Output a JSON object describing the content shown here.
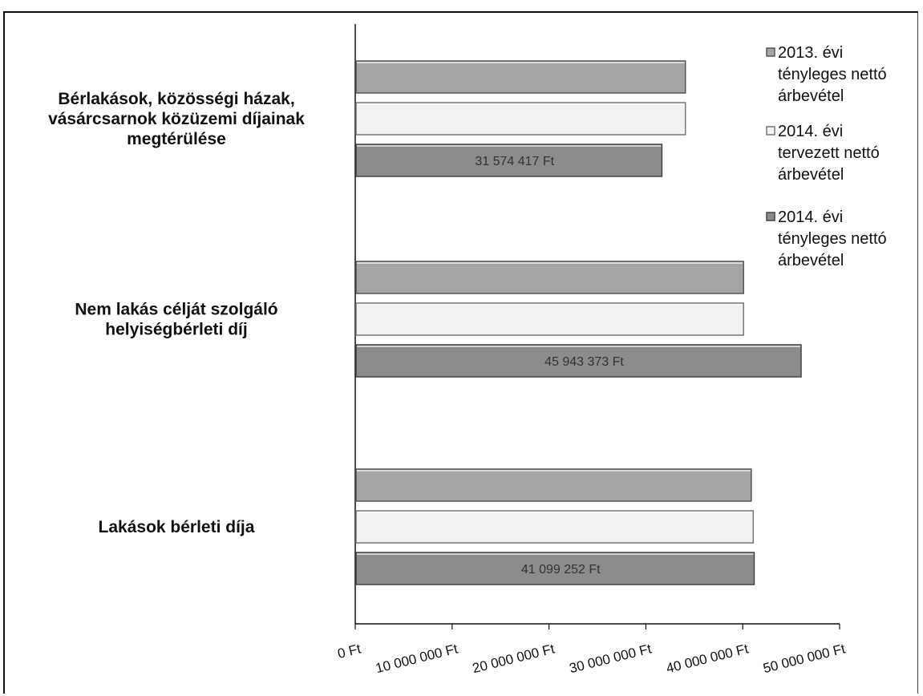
{
  "chart_data": {
    "type": "bar",
    "orientation": "horizontal",
    "categories": [
      [
        "Bérlakások, közösségi házak,",
        "vásárcsarnok közüzemi díjainak",
        "megtérülése"
      ],
      [
        "Nem lakás célját szolgáló",
        "helyiségbérleti díj"
      ],
      [
        "Lakások bérleti díja"
      ]
    ],
    "series": [
      {
        "name": [
          "2013. évi",
          "tényleges nettó",
          "árbevétel"
        ],
        "values": [
          34000000,
          40000000,
          40800000
        ],
        "data_labels": [
          "",
          "",
          ""
        ]
      },
      {
        "name": [
          "2014. évi",
          "tervezett nettó",
          "árbevétel"
        ],
        "values": [
          34000000,
          40000000,
          41000000
        ],
        "data_labels": [
          "",
          "",
          ""
        ]
      },
      {
        "name": [
          "2014. évi",
          "tényleges nettó",
          "árbevétel"
        ],
        "values": [
          31574417,
          45943373,
          41099252
        ],
        "data_labels": [
          "31 574 417 Ft",
          "45 943 373 Ft",
          "41 099 252 Ft"
        ]
      }
    ],
    "x_ticks": [
      "0 Ft",
      "10 000 000 Ft",
      "20 000 000 Ft",
      "30 000 000 Ft",
      "40 000 000 Ft",
      "50 000 000 Ft"
    ],
    "xlim": [
      0,
      50000000
    ],
    "grid": false,
    "legend_position": "top-right",
    "colors": {
      "series_fill": [
        "#a5a5a5",
        "#f2f2f2",
        "#8c8c8c"
      ],
      "series_edge": [
        "#555555",
        "#777777",
        "#444444"
      ],
      "axis": "#111111"
    }
  }
}
